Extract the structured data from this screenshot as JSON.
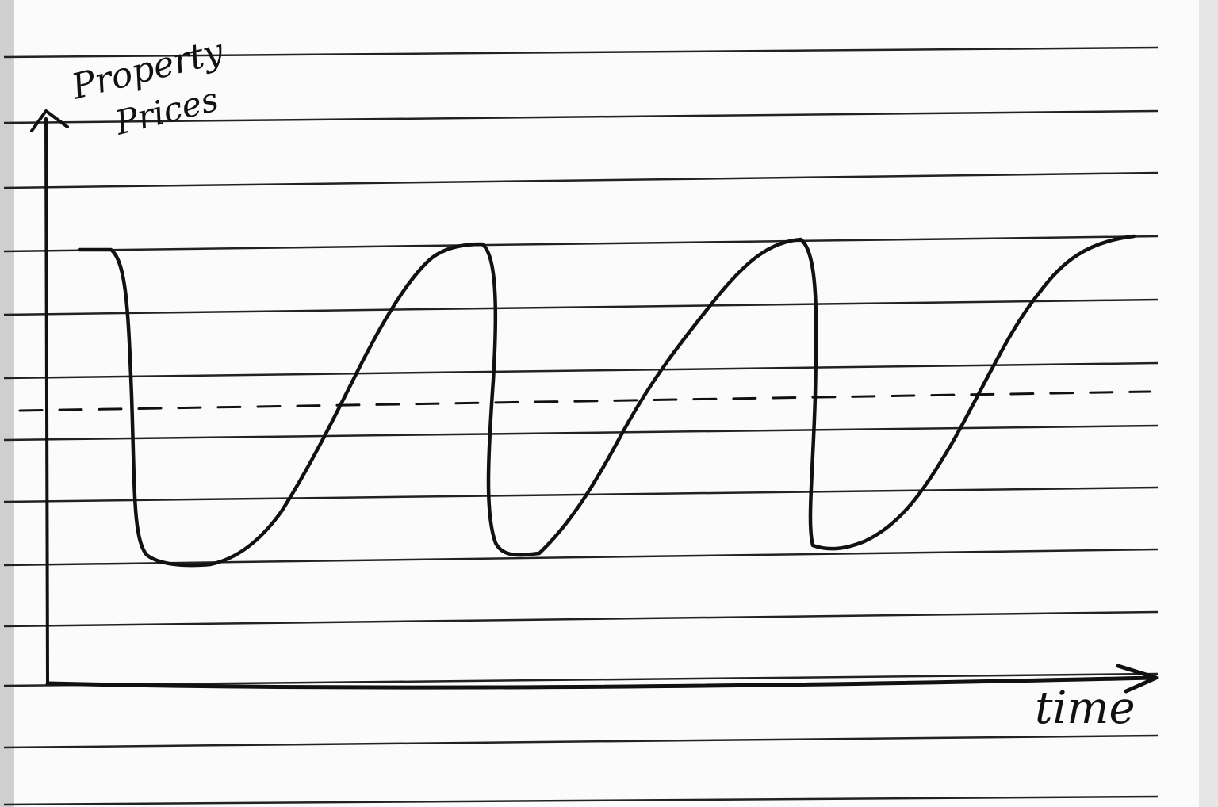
{
  "y_axis_label": [
    "Property",
    "Prices"
  ],
  "x_axis_label": "time"
}
